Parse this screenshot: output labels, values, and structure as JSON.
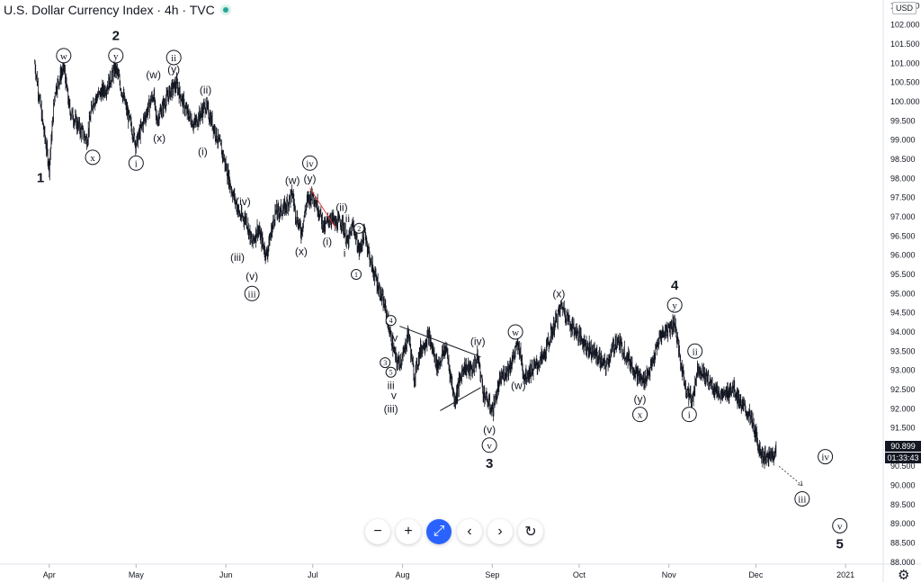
{
  "header": {
    "title": "U.S. Dollar Currency Index · 4h · TVC"
  },
  "currency_badge": "USD",
  "last_price": "90.899",
  "countdown": "01:33:43",
  "colors": {
    "candle": "#131722",
    "triangle_line": "#131722",
    "red_line": "#e53935",
    "projection": "#555555",
    "price_tag_bg": "#131722",
    "zoom_btn": "#2962ff"
  },
  "toolbar": {
    "zoom_out": "−",
    "zoom_in": "+",
    "reset_zoom": "⤢",
    "back": "‹",
    "forward": "›",
    "refresh": "↻"
  },
  "icons": {
    "settings": "gear-icon",
    "status": "status-dot-icon"
  },
  "chart_data": {
    "type": "candlestick",
    "title": "U.S. Dollar Currency Index",
    "interval": "4h",
    "source": "TVC",
    "ylim": [
      87.95,
      102.65
    ],
    "y_ticks": [
      "102.500",
      "102.000",
      "101.500",
      "101.000",
      "100.500",
      "100.000",
      "99.500",
      "99.000",
      "98.500",
      "98.000",
      "97.500",
      "97.000",
      "96.500",
      "96.000",
      "95.500",
      "95.000",
      "94.500",
      "94.000",
      "93.500",
      "93.000",
      "92.500",
      "92.000",
      "91.500",
      "91.000",
      "90.500",
      "90.000",
      "89.500",
      "89.000",
      "88.500",
      "88.000"
    ],
    "x_ticks": [
      "Apr",
      "May",
      "Jun",
      "Jul",
      "Aug",
      "Sep",
      "Oct",
      "Nov",
      "Dec",
      "2021"
    ],
    "x_tick_dates": [
      "2020-04-01",
      "2020-05-01",
      "2020-06-01",
      "2020-07-01",
      "2020-08-01",
      "2020-09-01",
      "2020-10-01",
      "2020-11-01",
      "2020-12-01",
      "2021-01-01"
    ],
    "price_path": [
      [
        "2020-03-27",
        101.0
      ],
      [
        "2020-03-30",
        99.3
      ],
      [
        "2020-04-01",
        98.3
      ],
      [
        "2020-04-03",
        100.3
      ],
      [
        "2020-04-06",
        100.9
      ],
      [
        "2020-04-08",
        99.8
      ],
      [
        "2020-04-10",
        99.5
      ],
      [
        "2020-04-14",
        99.0
      ],
      [
        "2020-04-16",
        100.0
      ],
      [
        "2020-04-21",
        100.4
      ],
      [
        "2020-04-24",
        100.9
      ],
      [
        "2020-04-28",
        99.7
      ],
      [
        "2020-05-01",
        98.9
      ],
      [
        "2020-05-04",
        99.6
      ],
      [
        "2020-05-07",
        100.2
      ],
      [
        "2020-05-08",
        99.5
      ],
      [
        "2020-05-11",
        100.0
      ],
      [
        "2020-05-13",
        100.3
      ],
      [
        "2020-05-15",
        100.45
      ],
      [
        "2020-05-18",
        99.8
      ],
      [
        "2020-05-21",
        99.4
      ],
      [
        "2020-05-25",
        99.9
      ],
      [
        "2020-05-28",
        99.3
      ],
      [
        "2020-05-31",
        98.6
      ],
      [
        "2020-06-03",
        97.7
      ],
      [
        "2020-06-06",
        97.0
      ],
      [
        "2020-06-08",
        96.95
      ],
      [
        "2020-06-10",
        96.3
      ],
      [
        "2020-06-12",
        96.7
      ],
      [
        "2020-06-15",
        96.0
      ],
      [
        "2020-06-18",
        97.1
      ],
      [
        "2020-06-21",
        97.2
      ],
      [
        "2020-06-24",
        97.6
      ],
      [
        "2020-06-25",
        97.1
      ],
      [
        "2020-06-27",
        96.6
      ],
      [
        "2020-06-29",
        97.4
      ],
      [
        "2020-07-01",
        97.6
      ],
      [
        "2020-07-03",
        97.2
      ],
      [
        "2020-07-05",
        96.7
      ],
      [
        "2020-07-07",
        97.0
      ],
      [
        "2020-07-09",
        96.8
      ],
      [
        "2020-07-11",
        96.9
      ],
      [
        "2020-07-13",
        96.3
      ],
      [
        "2020-07-15",
        96.8
      ],
      [
        "2020-07-17",
        96.1
      ],
      [
        "2020-07-19",
        96.6
      ],
      [
        "2020-07-21",
        95.8
      ],
      [
        "2020-07-24",
        95.1
      ],
      [
        "2020-07-26",
        94.6
      ],
      [
        "2020-07-29",
        93.5
      ],
      [
        "2020-07-30",
        93.2
      ],
      [
        "2020-08-01",
        93.3
      ],
      [
        "2020-08-03",
        94.0
      ],
      [
        "2020-08-05",
        92.8
      ],
      [
        "2020-08-07",
        93.5
      ],
      [
        "2020-08-10",
        93.9
      ],
      [
        "2020-08-13",
        93.1
      ],
      [
        "2020-08-16",
        93.6
      ],
      [
        "2020-08-19",
        92.2
      ],
      [
        "2020-08-22",
        93.1
      ],
      [
        "2020-08-25",
        93.0
      ],
      [
        "2020-08-27",
        93.35
      ],
      [
        "2020-08-29",
        92.4
      ],
      [
        "2020-09-01",
        91.95
      ],
      [
        "2020-09-04",
        92.8
      ],
      [
        "2020-09-07",
        93.1
      ],
      [
        "2020-09-10",
        93.7
      ],
      [
        "2020-09-12",
        92.85
      ],
      [
        "2020-09-16",
        93.1
      ],
      [
        "2020-09-19",
        93.4
      ],
      [
        "2020-09-22",
        94.1
      ],
      [
        "2020-09-25",
        94.7
      ],
      [
        "2020-09-28",
        94.2
      ],
      [
        "2020-10-01",
        93.9
      ],
      [
        "2020-10-04",
        93.6
      ],
      [
        "2020-10-07",
        93.4
      ],
      [
        "2020-10-10",
        93.1
      ],
      [
        "2020-10-14",
        93.8
      ],
      [
        "2020-10-18",
        93.3
      ],
      [
        "2020-10-21",
        92.9
      ],
      [
        "2020-10-23",
        92.7
      ],
      [
        "2020-10-26",
        93.1
      ],
      [
        "2020-10-29",
        93.9
      ],
      [
        "2020-11-01",
        94.1
      ],
      [
        "2020-11-03",
        94.25
      ],
      [
        "2020-11-05",
        93.2
      ],
      [
        "2020-11-07",
        92.5
      ],
      [
        "2020-11-09",
        92.2
      ],
      [
        "2020-11-11",
        93.1
      ],
      [
        "2020-11-14",
        92.8
      ],
      [
        "2020-11-17",
        92.5
      ],
      [
        "2020-11-20",
        92.3
      ],
      [
        "2020-11-23",
        92.6
      ],
      [
        "2020-11-26",
        92.1
      ],
      [
        "2020-11-29",
        91.8
      ],
      [
        "2020-12-01",
        91.3
      ],
      [
        "2020-12-03",
        90.8
      ],
      [
        "2020-12-05",
        90.7
      ],
      [
        "2020-12-08",
        90.9
      ]
    ],
    "projection": {
      "from": [
        "2020-12-09",
        90.5
      ],
      "to": [
        "2020-12-17",
        90.0
      ]
    },
    "trendlines": [
      {
        "name": "triangle-upper",
        "from": [
          "2020-07-31",
          94.15
        ],
        "to": [
          "2020-08-28",
          93.35
        ],
        "color": "#131722"
      },
      {
        "name": "triangle-lower",
        "from": [
          "2020-08-14",
          91.95
        ],
        "to": [
          "2020-08-28",
          92.55
        ],
        "color": "#131722"
      },
      {
        "name": "red-channel",
        "from": [
          "2020-06-30",
          97.75
        ],
        "to": [
          "2020-07-09",
          96.7
        ],
        "color": "#e53935"
      }
    ],
    "wave_labels": [
      {
        "t": "1",
        "d": "2020-03-29",
        "p": 98.0,
        "s": "bold"
      },
      {
        "t": "2",
        "d": "2020-04-24",
        "p": 101.7,
        "s": "bold"
      },
      {
        "t": "w",
        "d": "2020-04-06",
        "p": 101.2,
        "s": "circle"
      },
      {
        "t": "x",
        "d": "2020-04-16",
        "p": 98.55,
        "s": "circle"
      },
      {
        "t": "y",
        "d": "2020-04-24",
        "p": 101.2,
        "s": "circle"
      },
      {
        "t": "i",
        "d": "2020-05-01",
        "p": 98.4,
        "s": "circle"
      },
      {
        "t": "(w)",
        "d": "2020-05-07",
        "p": 100.7,
        "s": "text"
      },
      {
        "t": "(x)",
        "d": "2020-05-09",
        "p": 99.05,
        "s": "text"
      },
      {
        "t": "ii",
        "d": "2020-05-14",
        "p": 101.15,
        "s": "circle"
      },
      {
        "t": "(y)",
        "d": "2020-05-14",
        "p": 100.85,
        "s": "text"
      },
      {
        "t": "(ii)",
        "d": "2020-05-25",
        "p": 100.3,
        "s": "text"
      },
      {
        "t": "(i)",
        "d": "2020-05-24",
        "p": 98.7,
        "s": "text"
      },
      {
        "t": "(iv)",
        "d": "2020-06-07",
        "p": 97.4,
        "s": "text"
      },
      {
        "t": "(iii)",
        "d": "2020-06-05",
        "p": 95.95,
        "s": "text"
      },
      {
        "t": "(v)",
        "d": "2020-06-10",
        "p": 95.45,
        "s": "text"
      },
      {
        "t": "iii",
        "d": "2020-06-10",
        "p": 95.0,
        "s": "circle"
      },
      {
        "t": "(w)",
        "d": "2020-06-24",
        "p": 97.95,
        "s": "text"
      },
      {
        "t": "(x)",
        "d": "2020-06-27",
        "p": 96.1,
        "s": "text"
      },
      {
        "t": "iv",
        "d": "2020-06-30",
        "p": 98.4,
        "s": "circle"
      },
      {
        "t": "(y)",
        "d": "2020-06-30",
        "p": 98.0,
        "s": "text"
      },
      {
        "t": "(ii)",
        "d": "2020-07-11",
        "p": 97.25,
        "s": "text"
      },
      {
        "t": "ii",
        "d": "2020-07-13",
        "p": 96.95,
        "s": "text"
      },
      {
        "t": "(i)",
        "d": "2020-07-06",
        "p": 96.35,
        "s": "text"
      },
      {
        "t": "i",
        "d": "2020-07-12",
        "p": 96.05,
        "s": "text"
      },
      {
        "t": "2",
        "d": "2020-07-17",
        "p": 96.7,
        "s": "circlesmall"
      },
      {
        "t": "1",
        "d": "2020-07-16",
        "p": 95.5,
        "s": "circlesmall"
      },
      {
        "t": "4",
        "d": "2020-07-28",
        "p": 94.3,
        "s": "circlesmall"
      },
      {
        "t": "iv",
        "d": "2020-07-29",
        "p": 93.85,
        "s": "text"
      },
      {
        "t": "3",
        "d": "2020-07-26",
        "p": 93.2,
        "s": "circlesmall"
      },
      {
        "t": "5",
        "d": "2020-07-28",
        "p": 92.95,
        "s": "circlesmall"
      },
      {
        "t": "iii",
        "d": "2020-07-28",
        "p": 92.6,
        "s": "text"
      },
      {
        "t": "v",
        "d": "2020-07-29",
        "p": 92.35,
        "s": "text"
      },
      {
        "t": "(iii)",
        "d": "2020-07-28",
        "p": 92.0,
        "s": "text"
      },
      {
        "t": "(iv)",
        "d": "2020-08-27",
        "p": 93.75,
        "s": "text"
      },
      {
        "t": "(v)",
        "d": "2020-08-31",
        "p": 91.45,
        "s": "text"
      },
      {
        "t": "v",
        "d": "2020-08-31",
        "p": 91.05,
        "s": "circle"
      },
      {
        "t": "3",
        "d": "2020-08-31",
        "p": 90.55,
        "s": "bold"
      },
      {
        "t": "w",
        "d": "2020-09-09",
        "p": 94.0,
        "s": "circle"
      },
      {
        "t": "(w)",
        "d": "2020-09-10",
        "p": 92.6,
        "s": "text"
      },
      {
        "t": "(x)",
        "d": "2020-09-24",
        "p": 95.0,
        "s": "text"
      },
      {
        "t": "(y)",
        "d": "2020-10-22",
        "p": 92.25,
        "s": "text"
      },
      {
        "t": "x",
        "d": "2020-10-22",
        "p": 91.85,
        "s": "circle"
      },
      {
        "t": "4",
        "d": "2020-11-03",
        "p": 95.2,
        "s": "bold"
      },
      {
        "t": "y",
        "d": "2020-11-03",
        "p": 94.7,
        "s": "circle"
      },
      {
        "t": "ii",
        "d": "2020-11-10",
        "p": 93.5,
        "s": "circle"
      },
      {
        "t": "i",
        "d": "2020-11-08",
        "p": 91.85,
        "s": "circle"
      },
      {
        "t": "iv",
        "d": "2020-12-25",
        "p": 90.75,
        "s": "circle"
      },
      {
        "t": "iii",
        "d": "2020-12-17",
        "p": 89.65,
        "s": "circle"
      },
      {
        "t": "v",
        "d": "2020-12-30",
        "p": 88.95,
        "s": "circle"
      },
      {
        "t": "5",
        "d": "2020-12-30",
        "p": 88.45,
        "s": "bold"
      }
    ]
  }
}
